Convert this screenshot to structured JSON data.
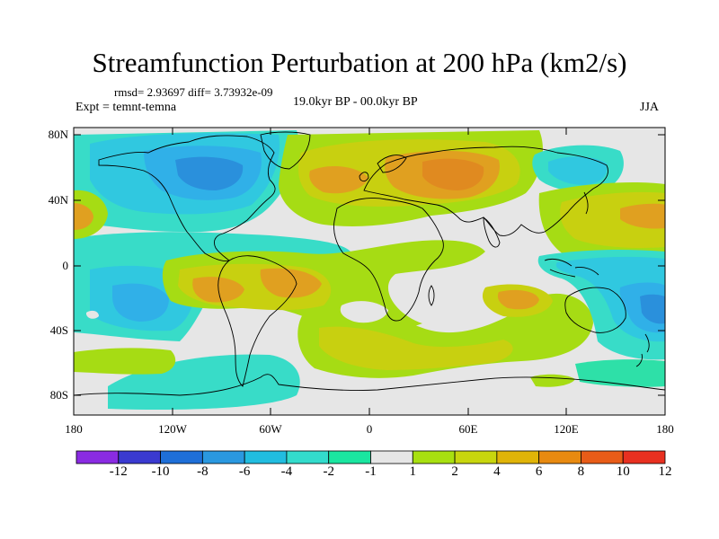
{
  "header": {
    "title": "Streamfunction Perturbation at 200 hPa (km2/s)",
    "stats": "rmsd= 2.93697  diff= 3.73932e-09",
    "expt": "Expt = temnt-temna",
    "period": "19.0kyr BP - 00.0kyr BP",
    "season": "JJA"
  },
  "axes": {
    "lat_labels": [
      "80N",
      "40N",
      "0",
      "40S",
      "80S"
    ],
    "lon_labels": [
      "180",
      "120W",
      "60W",
      "0",
      "60E",
      "120E",
      "180"
    ]
  },
  "colorbar": {
    "labels": [
      "-12",
      "-10",
      "-8",
      "-6",
      "-4",
      "-2",
      "-1",
      "1",
      "2",
      "4",
      "6",
      "8",
      "10",
      "12"
    ],
    "colors": [
      "#8a2be2",
      "#3a3ad0",
      "#1e6fd8",
      "#2a98e0",
      "#21bde0",
      "#33dccc",
      "#1ae6a0",
      "#e6e6e6",
      "#a8e010",
      "#c8d60e",
      "#e0b408",
      "#e88a10",
      "#e85c18",
      "#e83020"
    ]
  },
  "map": {
    "background": "#e6e6e6",
    "blob_colors": {
      "orange": "#e0a020",
      "dark_orange": "#e08a20",
      "yellow": "#c8d010",
      "green": "#a6dc14",
      "cyan": "#30c8e0",
      "teal": "#38dcc8",
      "blue": "#2a90dc",
      "light_blue": "#30b0e8",
      "mint": "#2ee0a8"
    }
  }
}
